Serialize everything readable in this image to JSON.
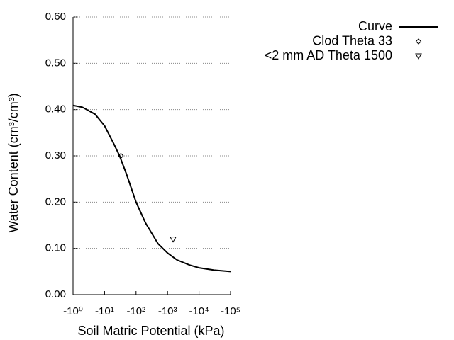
{
  "chart_data": {
    "type": "line",
    "xlabel": "Soil Matric Potential (kPa)",
    "ylabel": "Water Content (cm³/cm³)",
    "xscale": "log",
    "xlim": [
      1,
      100000
    ],
    "xticks": [
      {
        "value": 1,
        "label": "-10⁰"
      },
      {
        "value": 10,
        "label": "-10¹"
      },
      {
        "value": 100,
        "label": "-10²"
      },
      {
        "value": 1000,
        "label": "-10³"
      },
      {
        "value": 10000,
        "label": "-10⁴"
      },
      {
        "value": 100000,
        "label": "-10⁵"
      }
    ],
    "ylim": [
      0,
      0.6
    ],
    "yticks": [
      {
        "value": 0,
        "label": "0.00"
      },
      {
        "value": 0.1,
        "label": "0.10"
      },
      {
        "value": 0.2,
        "label": "0.20"
      },
      {
        "value": 0.3,
        "label": "0.30"
      },
      {
        "value": 0.4,
        "label": "0.40"
      },
      {
        "value": 0.5,
        "label": "0.50"
      },
      {
        "value": 0.6,
        "label": "0.60"
      }
    ],
    "grid": true,
    "legend": "top-right",
    "series": [
      {
        "name": "Curve",
        "color": "#000000",
        "marker": "none",
        "x": [
          1,
          2,
          5,
          10,
          20,
          30,
          50,
          100,
          200,
          500,
          1000,
          2000,
          5000,
          10000,
          30000,
          100000
        ],
        "values": [
          0.409,
          0.405,
          0.39,
          0.365,
          0.325,
          0.3,
          0.26,
          0.2,
          0.155,
          0.11,
          0.09,
          0.075,
          0.064,
          0.058,
          0.053,
          0.05
        ]
      },
      {
        "name": "Clod Theta 33",
        "color": "#000000",
        "marker": "diamond",
        "x": [
          33
        ],
        "values": [
          0.3
        ]
      },
      {
        "name": "<2 mm AD Theta 1500",
        "color": "#000000",
        "marker": "triangle-down",
        "x": [
          1500
        ],
        "values": [
          0.12
        ]
      }
    ]
  }
}
